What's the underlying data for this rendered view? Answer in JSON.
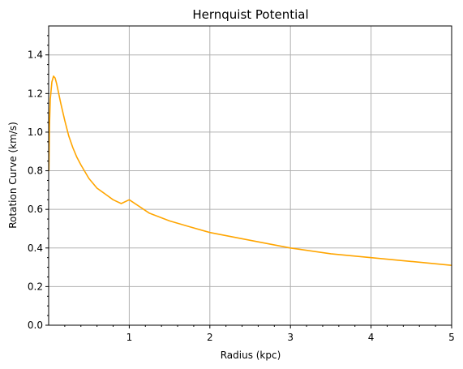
{
  "chart_data": {
    "type": "line",
    "title": "Hernquist Potential",
    "xlabel": "Radius (kpc)",
    "ylabel": "Rotation Curve (km/s)",
    "xlim": [
      0,
      5
    ],
    "ylim": [
      0,
      1.55
    ],
    "xticks": [
      1,
      2,
      3,
      4,
      5
    ],
    "xtick_labels": [
      "1",
      "2",
      "3",
      "4",
      "5"
    ],
    "yticks": [
      0.0,
      0.2,
      0.4,
      0.6,
      0.8,
      1.0,
      1.2,
      1.4
    ],
    "ytick_labels": [
      "0.0",
      "0.2",
      "0.4",
      "0.6",
      "0.8",
      "1.0",
      "1.2",
      "1.4"
    ],
    "grid": true,
    "minor_ticks": true,
    "series": [
      {
        "color": "#ffa500",
        "x": [
          0.003,
          0.01,
          0.02,
          0.04,
          0.06,
          0.08,
          0.1,
          0.12,
          0.15,
          0.2,
          0.25,
          0.3,
          0.35,
          0.4,
          0.5,
          0.6,
          0.7,
          0.8,
          0.9,
          1.0,
          1.25,
          1.5,
          1.75,
          2.0,
          2.5,
          3.0,
          3.5,
          4.0,
          4.5,
          5.0
        ],
        "y": [
          0.8,
          1.03,
          1.17,
          1.26,
          1.29,
          1.28,
          1.25,
          1.21,
          1.15,
          1.06,
          0.98,
          0.92,
          0.87,
          0.83,
          0.76,
          0.71,
          0.68,
          0.65,
          0.63,
          0.65,
          0.58,
          0.54,
          0.51,
          0.48,
          0.44,
          0.4,
          0.37,
          0.35,
          0.33,
          0.31
        ]
      }
    ]
  }
}
